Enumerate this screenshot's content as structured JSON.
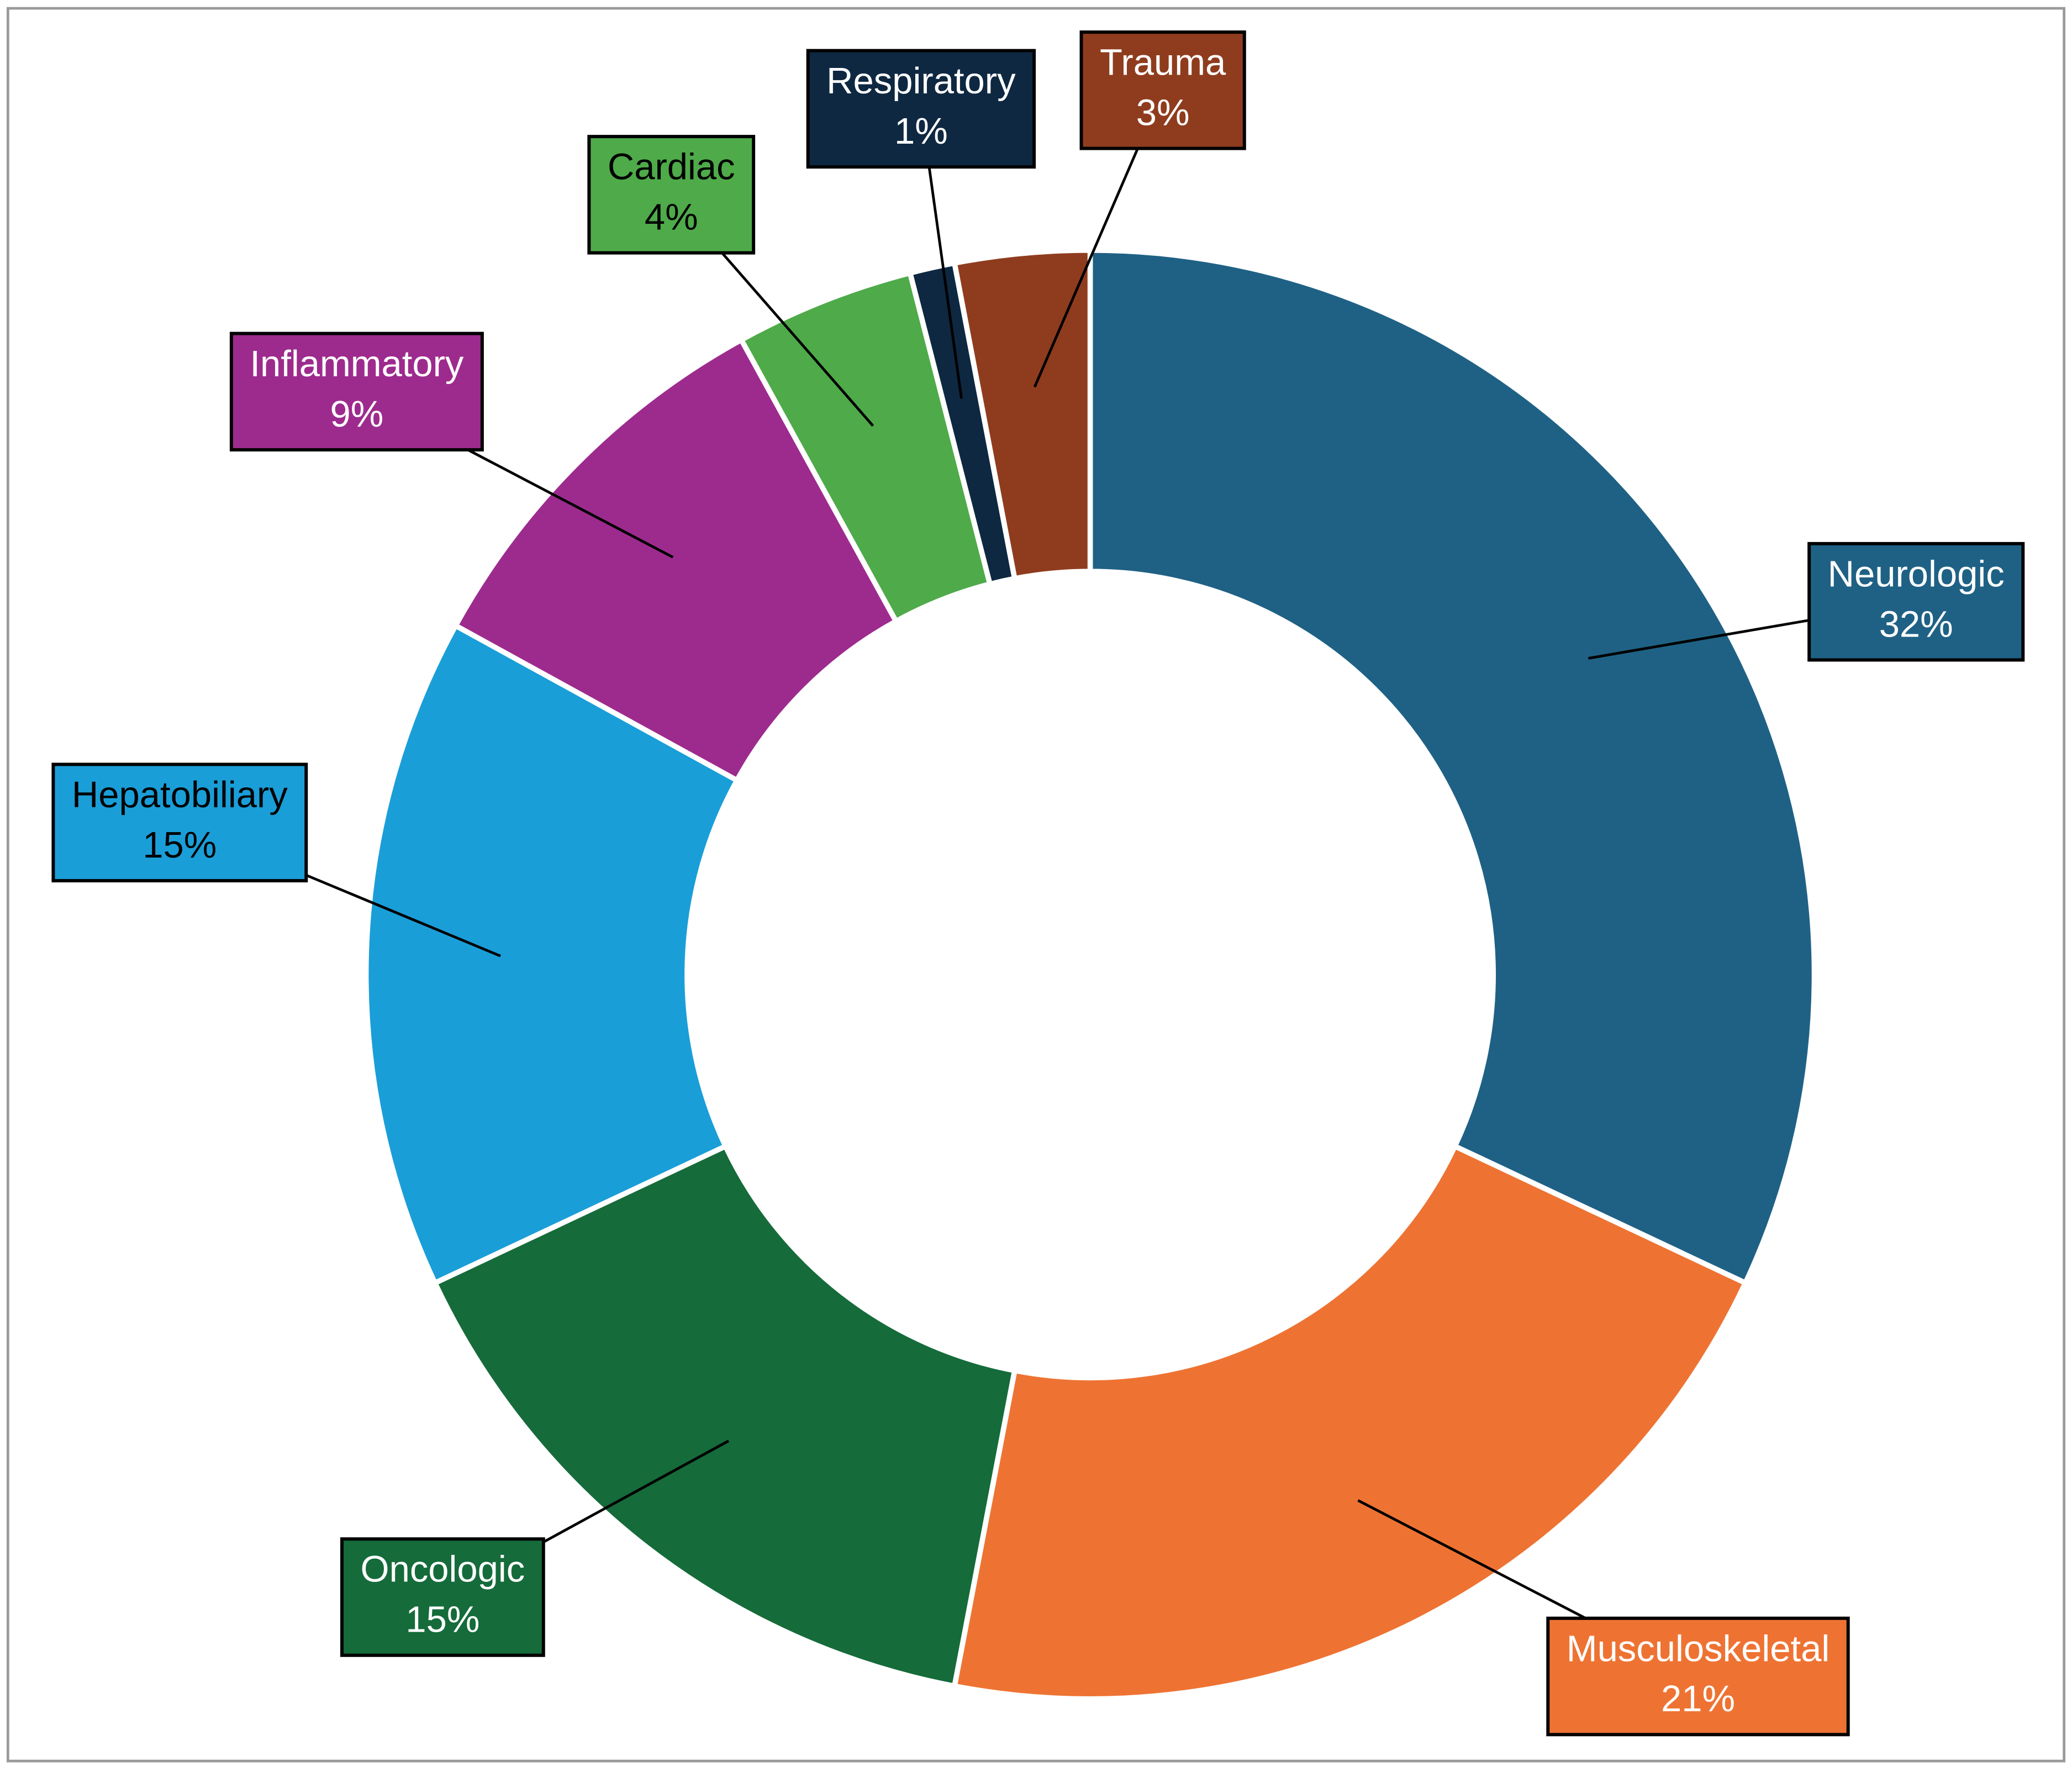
{
  "chart_data": {
    "type": "donut",
    "categories": [
      "Neurologic",
      "Musculoskeletal",
      "Oncologic",
      "Hepatobiliary",
      "Inflammatory",
      "Cardiac",
      "Respiratory",
      "Trauma"
    ],
    "values": [
      32,
      21,
      15,
      15,
      9,
      4,
      1,
      3
    ],
    "value_labels": [
      "32%",
      "21%",
      "15%",
      "15%",
      "9%",
      "4%",
      "1%",
      "3%"
    ],
    "colors": [
      "#1f6185",
      "#ee7333",
      "#156b3a",
      "#1a9ed8",
      "#9d2b8e",
      "#4faa4a",
      "#0e2841",
      "#8f3c1e"
    ]
  }
}
